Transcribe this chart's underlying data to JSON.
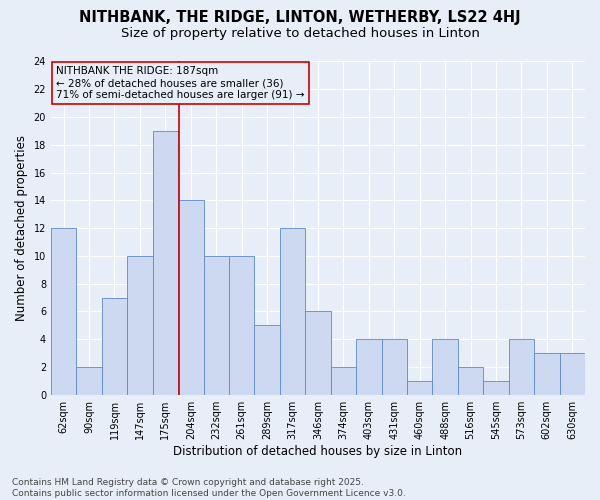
{
  "title1": "NITHBANK, THE RIDGE, LINTON, WETHERBY, LS22 4HJ",
  "title2": "Size of property relative to detached houses in Linton",
  "xlabel": "Distribution of detached houses by size in Linton",
  "ylabel": "Number of detached properties",
  "categories": [
    "62sqm",
    "90sqm",
    "119sqm",
    "147sqm",
    "175sqm",
    "204sqm",
    "232sqm",
    "261sqm",
    "289sqm",
    "317sqm",
    "346sqm",
    "374sqm",
    "403sqm",
    "431sqm",
    "460sqm",
    "488sqm",
    "516sqm",
    "545sqm",
    "573sqm",
    "602sqm",
    "630sqm"
  ],
  "values": [
    12,
    2,
    7,
    10,
    19,
    14,
    10,
    10,
    5,
    12,
    6,
    2,
    4,
    4,
    1,
    4,
    2,
    1,
    4,
    3,
    3
  ],
  "bar_color": "#ccd9f0",
  "bar_edge_color": "#5b8ac9",
  "bg_color": "#e8eef8",
  "grid_color": "#ffffff",
  "vline_index": 4.55,
  "vline_color": "#cc0000",
  "annotation_line1": "NITHBANK THE RIDGE: 187sqm",
  "annotation_line2": "← 28% of detached houses are smaller (36)",
  "annotation_line3": "71% of semi-detached houses are larger (91) →",
  "annotation_box_color": "#cc0000",
  "ylim": [
    0,
    24
  ],
  "yticks": [
    0,
    2,
    4,
    6,
    8,
    10,
    12,
    14,
    16,
    18,
    20,
    22,
    24
  ],
  "footer": "Contains HM Land Registry data © Crown copyright and database right 2025.\nContains public sector information licensed under the Open Government Licence v3.0.",
  "title_fontsize": 10.5,
  "subtitle_fontsize": 9.5,
  "axis_label_fontsize": 8.5,
  "tick_fontsize": 7,
  "annotation_fontsize": 7.5,
  "footer_fontsize": 6.5
}
